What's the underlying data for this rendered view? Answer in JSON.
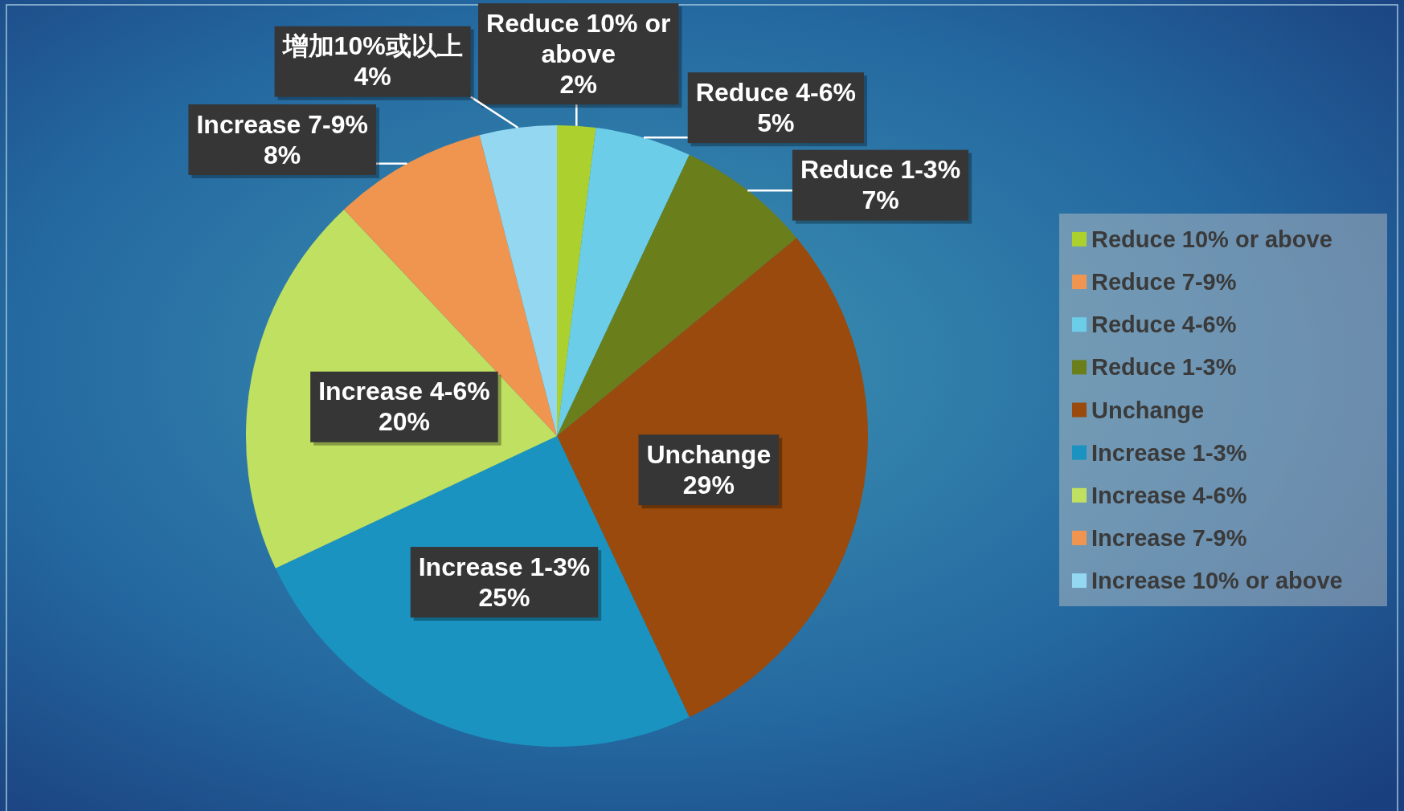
{
  "chart_data": {
    "type": "pie",
    "categories": [
      "Reduce 10% or above",
      "Reduce 7-9%",
      "Reduce 4-6%",
      "Reduce 1-3%",
      "Unchange",
      "Increase 1-3%",
      "Increase 4-6%",
      "Increase 7-9%",
      "Increase 10% or above"
    ],
    "values": [
      2,
      0,
      5,
      7,
      29,
      25,
      20,
      8,
      4
    ],
    "colors": [
      "#acd12f",
      "#f0954f",
      "#6ccde8",
      "#6a7f1c",
      "#9a4a0c",
      "#1b93c0",
      "#bfe060",
      "#f0954f",
      "#93d8f0"
    ],
    "value_labels": [
      "Reduce 10% or above\n2%",
      null,
      "Reduce 4-6%\n5%",
      "Reduce 1-3%\n7%",
      "Unchange\n29%",
      "Increase 1-3%\n25%",
      "Increase 4-6%\n20%",
      "Increase 7-9%\n8%",
      "增加10%或以上\n4%"
    ],
    "legend": "right"
  }
}
